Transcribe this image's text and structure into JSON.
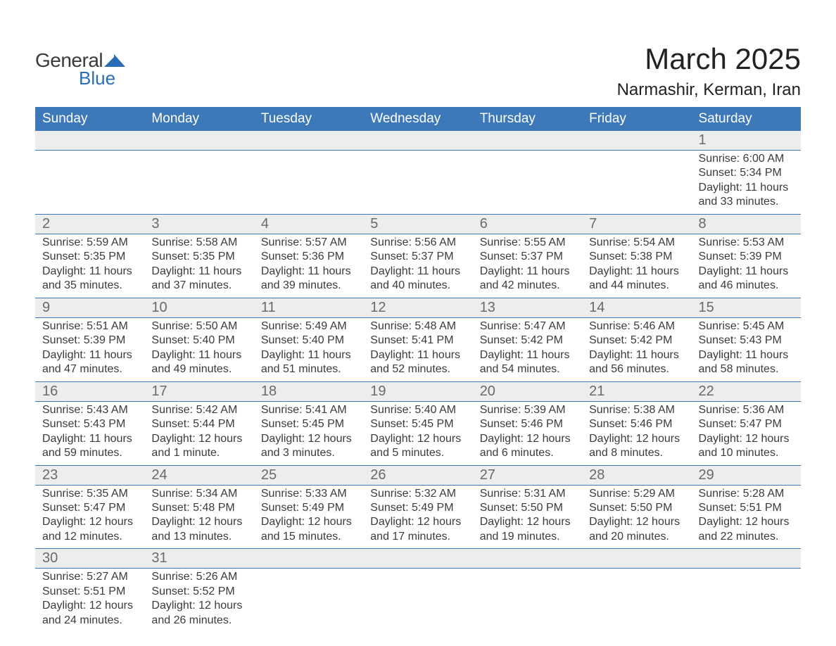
{
  "logo": {
    "text_a": "General",
    "text_b": "Blue",
    "shape_color": "#2a6db5"
  },
  "title": "March 2025",
  "location": "Narmashir, Kerman, Iran",
  "calendar": {
    "header_bg": "#3d78b8",
    "header_fg": "#ffffff",
    "daynum_bg": "#ededed",
    "row_border": "#3d78b8",
    "day_headers": [
      "Sunday",
      "Monday",
      "Tuesday",
      "Wednesday",
      "Thursday",
      "Friday",
      "Saturday"
    ],
    "weeks": [
      [
        {},
        {},
        {},
        {},
        {},
        {},
        {
          "n": "1",
          "sr": "6:00 AM",
          "ss": "5:34 PM",
          "dl": "11 hours and 33 minutes."
        }
      ],
      [
        {
          "n": "2",
          "sr": "5:59 AM",
          "ss": "5:35 PM",
          "dl": "11 hours and 35 minutes."
        },
        {
          "n": "3",
          "sr": "5:58 AM",
          "ss": "5:35 PM",
          "dl": "11 hours and 37 minutes."
        },
        {
          "n": "4",
          "sr": "5:57 AM",
          "ss": "5:36 PM",
          "dl": "11 hours and 39 minutes."
        },
        {
          "n": "5",
          "sr": "5:56 AM",
          "ss": "5:37 PM",
          "dl": "11 hours and 40 minutes."
        },
        {
          "n": "6",
          "sr": "5:55 AM",
          "ss": "5:37 PM",
          "dl": "11 hours and 42 minutes."
        },
        {
          "n": "7",
          "sr": "5:54 AM",
          "ss": "5:38 PM",
          "dl": "11 hours and 44 minutes."
        },
        {
          "n": "8",
          "sr": "5:53 AM",
          "ss": "5:39 PM",
          "dl": "11 hours and 46 minutes."
        }
      ],
      [
        {
          "n": "9",
          "sr": "5:51 AM",
          "ss": "5:39 PM",
          "dl": "11 hours and 47 minutes."
        },
        {
          "n": "10",
          "sr": "5:50 AM",
          "ss": "5:40 PM",
          "dl": "11 hours and 49 minutes."
        },
        {
          "n": "11",
          "sr": "5:49 AM",
          "ss": "5:40 PM",
          "dl": "11 hours and 51 minutes."
        },
        {
          "n": "12",
          "sr": "5:48 AM",
          "ss": "5:41 PM",
          "dl": "11 hours and 52 minutes."
        },
        {
          "n": "13",
          "sr": "5:47 AM",
          "ss": "5:42 PM",
          "dl": "11 hours and 54 minutes."
        },
        {
          "n": "14",
          "sr": "5:46 AM",
          "ss": "5:42 PM",
          "dl": "11 hours and 56 minutes."
        },
        {
          "n": "15",
          "sr": "5:45 AM",
          "ss": "5:43 PM",
          "dl": "11 hours and 58 minutes."
        }
      ],
      [
        {
          "n": "16",
          "sr": "5:43 AM",
          "ss": "5:43 PM",
          "dl": "11 hours and 59 minutes."
        },
        {
          "n": "17",
          "sr": "5:42 AM",
          "ss": "5:44 PM",
          "dl": "12 hours and 1 minute."
        },
        {
          "n": "18",
          "sr": "5:41 AM",
          "ss": "5:45 PM",
          "dl": "12 hours and 3 minutes."
        },
        {
          "n": "19",
          "sr": "5:40 AM",
          "ss": "5:45 PM",
          "dl": "12 hours and 5 minutes."
        },
        {
          "n": "20",
          "sr": "5:39 AM",
          "ss": "5:46 PM",
          "dl": "12 hours and 6 minutes."
        },
        {
          "n": "21",
          "sr": "5:38 AM",
          "ss": "5:46 PM",
          "dl": "12 hours and 8 minutes."
        },
        {
          "n": "22",
          "sr": "5:36 AM",
          "ss": "5:47 PM",
          "dl": "12 hours and 10 minutes."
        }
      ],
      [
        {
          "n": "23",
          "sr": "5:35 AM",
          "ss": "5:47 PM",
          "dl": "12 hours and 12 minutes."
        },
        {
          "n": "24",
          "sr": "5:34 AM",
          "ss": "5:48 PM",
          "dl": "12 hours and 13 minutes."
        },
        {
          "n": "25",
          "sr": "5:33 AM",
          "ss": "5:49 PM",
          "dl": "12 hours and 15 minutes."
        },
        {
          "n": "26",
          "sr": "5:32 AM",
          "ss": "5:49 PM",
          "dl": "12 hours and 17 minutes."
        },
        {
          "n": "27",
          "sr": "5:31 AM",
          "ss": "5:50 PM",
          "dl": "12 hours and 19 minutes."
        },
        {
          "n": "28",
          "sr": "5:29 AM",
          "ss": "5:50 PM",
          "dl": "12 hours and 20 minutes."
        },
        {
          "n": "29",
          "sr": "5:28 AM",
          "ss": "5:51 PM",
          "dl": "12 hours and 22 minutes."
        }
      ],
      [
        {
          "n": "30",
          "sr": "5:27 AM",
          "ss": "5:51 PM",
          "dl": "12 hours and 24 minutes."
        },
        {
          "n": "31",
          "sr": "5:26 AM",
          "ss": "5:52 PM",
          "dl": "12 hours and 26 minutes."
        },
        {},
        {},
        {},
        {},
        {}
      ]
    ],
    "labels": {
      "sunrise": "Sunrise: ",
      "sunset": "Sunset: ",
      "daylight": "Daylight: "
    }
  }
}
